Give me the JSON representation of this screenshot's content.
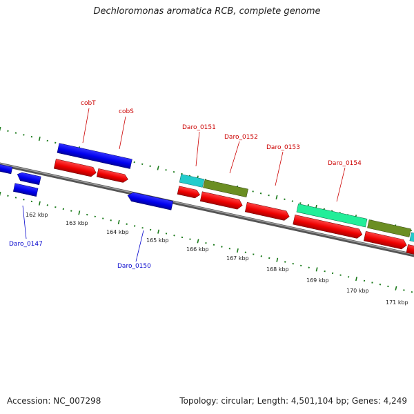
{
  "title": "Dechloromonas aromatica RCB, complete genome",
  "accession": "Accession: NC_007298",
  "summary": "Topology: circular; Length: 4,501,104 bp; Genes: 4,249",
  "colors": {
    "forward_cds": "#ff0000",
    "reverse_cds": "#0000ee",
    "backbone": "#808080",
    "tick": "#1a7a1a",
    "label_forward": "#cc0000",
    "label_reverse": "#0000cc",
    "cyan_feature": "#22cccc",
    "olive_feature": "#6b8e23",
    "spring_feature": "#22ee99"
  },
  "scale_labels": [
    "162 kbp",
    "163 kbp",
    "164 kbp",
    "165 kbp",
    "166 kbp",
    "167 kbp",
    "168 kbp",
    "169 kbp",
    "170 kbp",
    "171 kbp"
  ],
  "gene_labels": [
    {
      "text": "cobT",
      "strand": "forward"
    },
    {
      "text": "cobS",
      "strand": "forward"
    },
    {
      "text": "Daro_0151",
      "strand": "forward"
    },
    {
      "text": "Daro_0152",
      "strand": "forward"
    },
    {
      "text": "Daro_0153",
      "strand": "forward"
    },
    {
      "text": "Daro_0154",
      "strand": "forward"
    },
    {
      "text": "Daro_0147",
      "strand": "reverse"
    },
    {
      "text": "Daro_0150",
      "strand": "reverse"
    }
  ]
}
